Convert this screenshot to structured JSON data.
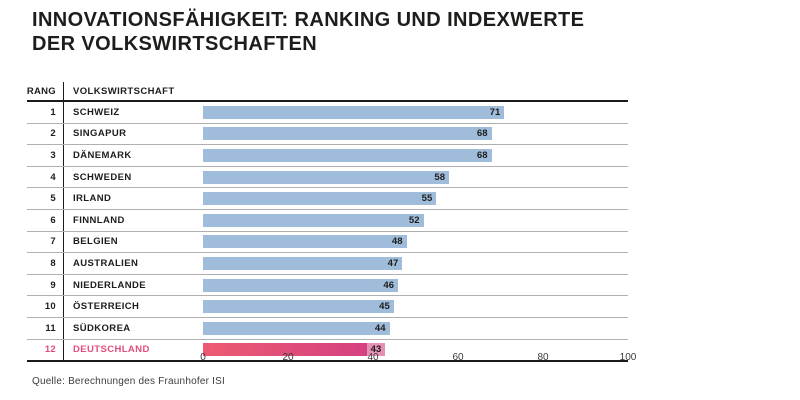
{
  "title": {
    "line1": "INNOVATIONSFÄHIGKEIT: RANKING UND INDEXWERTE",
    "line2": "DER VOLKSWIRTSCHAFTEN"
  },
  "table": {
    "rank_header": "RANG",
    "country_header": "VOLKSWIRTSCHAFT"
  },
  "chart_data": {
    "type": "bar",
    "orientation": "horizontal",
    "title": "INNOVATIONSFÄHIGKEIT: RANKING UND INDEXWERTE DER VOLKSWIRTSCHAFTEN",
    "categories": [
      "SCHWEIZ",
      "SINGAPUR",
      "DÄNEMARK",
      "SCHWEDEN",
      "IRLAND",
      "FINNLAND",
      "BELGIEN",
      "AUSTRALIEN",
      "NIEDERLANDE",
      "ÖSTERREICH",
      "SÜDKOREA",
      "DEUTSCHLAND"
    ],
    "ranks": [
      1,
      2,
      3,
      4,
      5,
      6,
      7,
      8,
      9,
      10,
      11,
      12
    ],
    "values": [
      71,
      68,
      68,
      58,
      55,
      52,
      48,
      47,
      46,
      45,
      44,
      43
    ],
    "highlight_index": 11,
    "xlim": [
      0,
      100
    ],
    "x_ticks": [
      0,
      20,
      40,
      60,
      80,
      100
    ],
    "grid": false,
    "legend": "none",
    "colors": {
      "bar": "#9fbcdb",
      "highlight_gradient_start": "#ed5b72",
      "highlight_gradient_end": "#d23e82",
      "highlight_text": "#e34d7c",
      "value_text": "#1d1d1b"
    }
  },
  "source": "Quelle: Berechnungen des Fraunhofer ISI"
}
